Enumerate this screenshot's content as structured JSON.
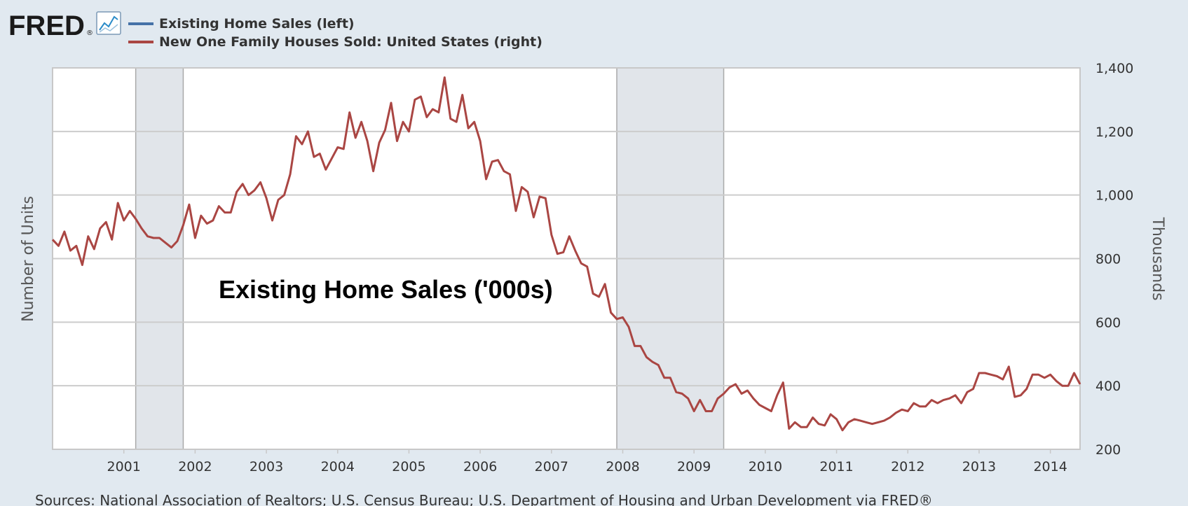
{
  "header": {
    "logo_text": "FRED",
    "logo_mark": "®",
    "chart_icon": "line-chart-icon"
  },
  "colors": {
    "background": "#e1e9f0",
    "plot_background": "#ffffff",
    "grid": "#cccccc",
    "recession": "#e1e5ea",
    "series_left": "#4572a7",
    "series_right": "#aa4643"
  },
  "footer": {
    "source": "Sources: National Association of Realtors; U.S. Census Bureau; U.S. Department of Housing and Urban Development via FRED®"
  },
  "chart_data": {
    "type": "line",
    "title": "",
    "legend": {
      "placement": "top-left",
      "entries": [
        {
          "label": "Existing Home Sales (left)",
          "color": "#4572a7"
        },
        {
          "label": "New One Family Houses Sold: United States (right)",
          "color": "#aa4643"
        }
      ]
    },
    "annotation": "Existing Home Sales ('000s)",
    "xlabel": "",
    "ylabel_left": "Number of Units",
    "ylabel_right": "Thousands",
    "x_range": [
      "2000-01",
      "2014-06"
    ],
    "x_ticks": [
      "2001",
      "2002",
      "2003",
      "2004",
      "2005",
      "2006",
      "2007",
      "2008",
      "2009",
      "2010",
      "2011",
      "2012",
      "2013",
      "2014"
    ],
    "y_right_range": [
      200,
      1400
    ],
    "y_right_ticks": [
      "200",
      "400",
      "600",
      "800",
      "1,000",
      "1,200",
      "1,400"
    ],
    "grid": true,
    "recessions": [
      {
        "start": "2001-03",
        "end": "2001-11"
      },
      {
        "start": "2007-12",
        "end": "2009-06"
      }
    ],
    "series": [
      {
        "name": "New One Family Houses Sold: United States (right)",
        "axis": "right",
        "start": "2000-01",
        "frequency": "monthly",
        "values": [
          860,
          840,
          885,
          825,
          840,
          780,
          870,
          830,
          895,
          915,
          860,
          975,
          920,
          950,
          925,
          895,
          870,
          865,
          865,
          850,
          835,
          855,
          905,
          970,
          865,
          935,
          910,
          920,
          965,
          945,
          945,
          1010,
          1035,
          1000,
          1015,
          1040,
          990,
          920,
          985,
          1000,
          1065,
          1185,
          1160,
          1200,
          1120,
          1130,
          1080,
          1115,
          1150,
          1145,
          1260,
          1180,
          1230,
          1170,
          1075,
          1165,
          1205,
          1290,
          1170,
          1230,
          1200,
          1300,
          1310,
          1245,
          1270,
          1260,
          1370,
          1240,
          1230,
          1315,
          1210,
          1230,
          1170,
          1050,
          1105,
          1110,
          1075,
          1065,
          950,
          1025,
          1010,
          930,
          995,
          990,
          875,
          815,
          820,
          870,
          825,
          785,
          775,
          690,
          680,
          720,
          630,
          610,
          615,
          585,
          525,
          525,
          490,
          475,
          465,
          425,
          425,
          380,
          375,
          360,
          320,
          355,
          320,
          320,
          360,
          375,
          395,
          405,
          375,
          385,
          360,
          340,
          330,
          320,
          370,
          410,
          265,
          285,
          270,
          270,
          300,
          280,
          275,
          310,
          295,
          260,
          285,
          295,
          290,
          285,
          280,
          285,
          290,
          300,
          315,
          325,
          320,
          345,
          335,
          335,
          355,
          345,
          355,
          360,
          370,
          345,
          380,
          390,
          440,
          440,
          435,
          430,
          420,
          460,
          365,
          370,
          390,
          435,
          435,
          425,
          435,
          415,
          400,
          400,
          440,
          405
        ]
      }
    ]
  }
}
